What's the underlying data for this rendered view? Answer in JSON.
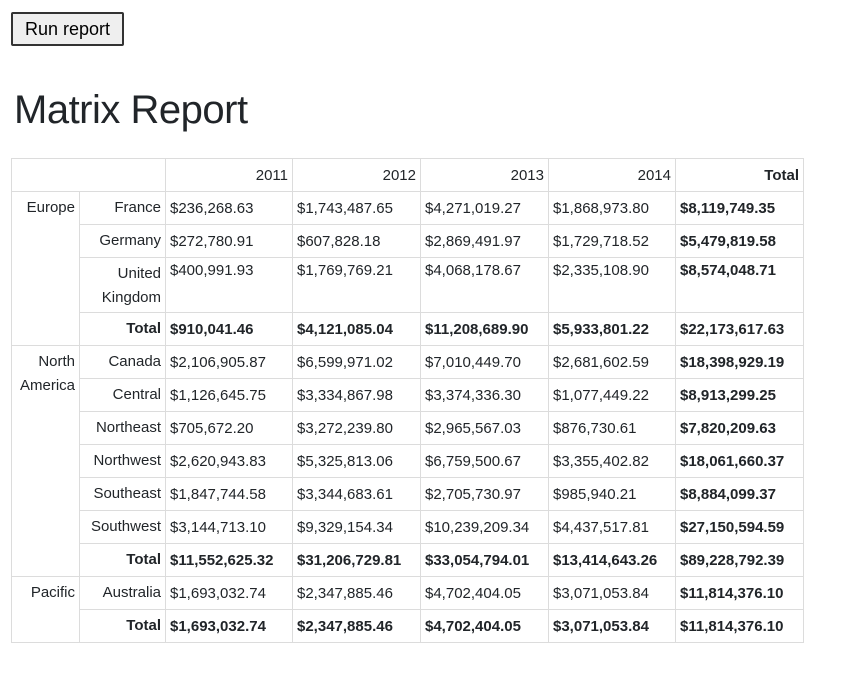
{
  "button": {
    "label": "Run report"
  },
  "title": "Matrix Report",
  "table": {
    "header": [
      "2011",
      "2012",
      "2013",
      "2014",
      "Total"
    ],
    "groups": [
      {
        "region": "Europe",
        "rows": [
          {
            "label": "France",
            "cells": [
              "$236,268.63",
              "$1,743,487.65",
              "$4,271,019.27",
              "$1,868,973.80",
              "$8,119,749.35"
            ]
          },
          {
            "label": "Germany",
            "cells": [
              "$272,780.91",
              "$607,828.18",
              "$2,869,491.97",
              "$1,729,718.52",
              "$5,479,819.58"
            ]
          },
          {
            "label": "United Kingdom",
            "cells": [
              "$400,991.93",
              "$1,769,769.21",
              "$4,068,178.67",
              "$2,335,108.90",
              "$8,574,048.71"
            ]
          }
        ],
        "total": {
          "label": "Total",
          "cells": [
            "$910,041.46",
            "$4,121,085.04",
            "$11,208,689.90",
            "$5,933,801.22",
            "$22,173,617.63"
          ]
        }
      },
      {
        "region": "North America",
        "rows": [
          {
            "label": "Canada",
            "cells": [
              "$2,106,905.87",
              "$6,599,971.02",
              "$7,010,449.70",
              "$2,681,602.59",
              "$18,398,929.19"
            ]
          },
          {
            "label": "Central",
            "cells": [
              "$1,126,645.75",
              "$3,334,867.98",
              "$3,374,336.30",
              "$1,077,449.22",
              "$8,913,299.25"
            ]
          },
          {
            "label": "Northeast",
            "cells": [
              "$705,672.20",
              "$3,272,239.80",
              "$2,965,567.03",
              "$876,730.61",
              "$7,820,209.63"
            ]
          },
          {
            "label": "Northwest",
            "cells": [
              "$2,620,943.83",
              "$5,325,813.06",
              "$6,759,500.67",
              "$3,355,402.82",
              "$18,061,660.37"
            ]
          },
          {
            "label": "Southeast",
            "cells": [
              "$1,847,744.58",
              "$3,344,683.61",
              "$2,705,730.97",
              "$985,940.21",
              "$8,884,099.37"
            ]
          },
          {
            "label": "Southwest",
            "cells": [
              "$3,144,713.10",
              "$9,329,154.34",
              "$10,239,209.34",
              "$4,437,517.81",
              "$27,150,594.59"
            ]
          }
        ],
        "total": {
          "label": "Total",
          "cells": [
            "$11,552,625.32",
            "$31,206,729.81",
            "$33,054,794.01",
            "$13,414,643.26",
            "$89,228,792.39"
          ]
        }
      },
      {
        "region": "Pacific",
        "rows": [
          {
            "label": "Australia",
            "cells": [
              "$1,693,032.74",
              "$2,347,885.46",
              "$4,702,404.05",
              "$3,071,053.84",
              "$11,814,376.10"
            ]
          }
        ],
        "total": {
          "label": "Total",
          "cells": [
            "$1,693,032.74",
            "$2,347,885.46",
            "$4,702,404.05",
            "$3,071,053.84",
            "$11,814,376.10"
          ]
        }
      }
    ]
  }
}
